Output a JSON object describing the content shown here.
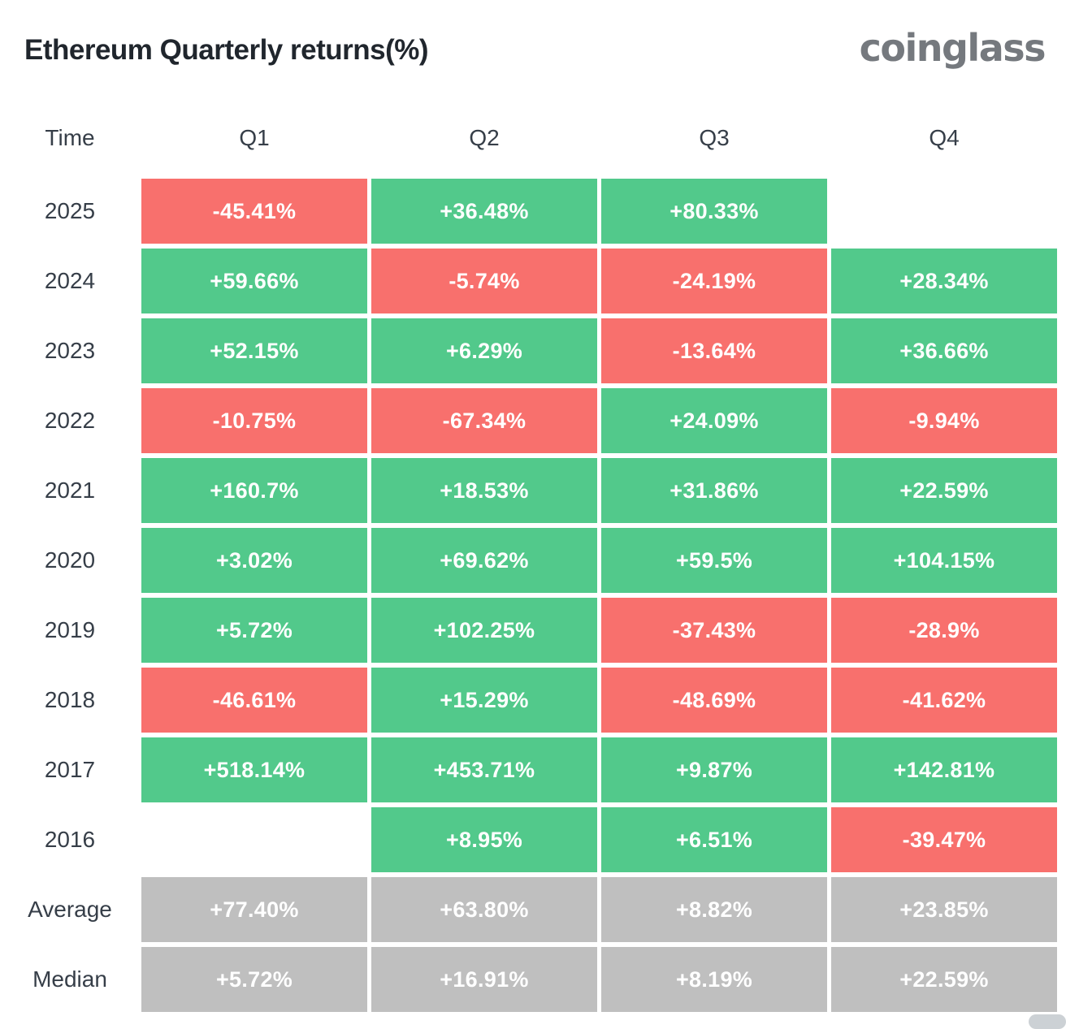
{
  "page": {
    "title": "Ethereum Quarterly returns(%)",
    "brand": "coinglass"
  },
  "colors": {
    "positive": "#52c98b",
    "negative": "#f8706d",
    "summary": "#bfbfbf",
    "label_text": "#363e48",
    "cell_text": "#ffffff"
  },
  "table": {
    "columns": [
      "Time",
      "Q1",
      "Q2",
      "Q3",
      "Q4"
    ],
    "rows": [
      {
        "label": "2025",
        "values": [
          "-45.41%",
          "+36.48%",
          "+80.33%",
          ""
        ]
      },
      {
        "label": "2024",
        "values": [
          "+59.66%",
          "-5.74%",
          "-24.19%",
          "+28.34%"
        ]
      },
      {
        "label": "2023",
        "values": [
          "+52.15%",
          "+6.29%",
          "-13.64%",
          "+36.66%"
        ]
      },
      {
        "label": "2022",
        "values": [
          "-10.75%",
          "-67.34%",
          "+24.09%",
          "-9.94%"
        ]
      },
      {
        "label": "2021",
        "values": [
          "+160.7%",
          "+18.53%",
          "+31.86%",
          "+22.59%"
        ]
      },
      {
        "label": "2020",
        "values": [
          "+3.02%",
          "+69.62%",
          "+59.5%",
          "+104.15%"
        ]
      },
      {
        "label": "2019",
        "values": [
          "+5.72%",
          "+102.25%",
          "-37.43%",
          "-28.9%"
        ]
      },
      {
        "label": "2018",
        "values": [
          "-46.61%",
          "+15.29%",
          "-48.69%",
          "-41.62%"
        ]
      },
      {
        "label": "2017",
        "values": [
          "+518.14%",
          "+453.71%",
          "+9.87%",
          "+142.81%"
        ]
      },
      {
        "label": "2016",
        "values": [
          "",
          "+8.95%",
          "+6.51%",
          "-39.47%"
        ]
      },
      {
        "label": "Average",
        "summary": true,
        "values": [
          "+77.40%",
          "+63.80%",
          "+8.82%",
          "+23.85%"
        ]
      },
      {
        "label": "Median",
        "summary": true,
        "values": [
          "+5.72%",
          "+16.91%",
          "+8.19%",
          "+22.59%"
        ]
      }
    ]
  },
  "chart_data": {
    "type": "heatmap",
    "title": "Ethereum Quarterly returns(%)",
    "columns": [
      "Q1",
      "Q2",
      "Q3",
      "Q4"
    ],
    "row_labels": [
      "2025",
      "2024",
      "2023",
      "2022",
      "2021",
      "2020",
      "2019",
      "2018",
      "2017",
      "2016",
      "Average",
      "Median"
    ],
    "values": [
      [
        -45.41,
        36.48,
        80.33,
        null
      ],
      [
        59.66,
        -5.74,
        -24.19,
        28.34
      ],
      [
        52.15,
        6.29,
        -13.64,
        36.66
      ],
      [
        -10.75,
        -67.34,
        24.09,
        -9.94
      ],
      [
        160.7,
        18.53,
        31.86,
        22.59
      ],
      [
        3.02,
        69.62,
        59.5,
        104.15
      ],
      [
        5.72,
        102.25,
        -37.43,
        -28.9
      ],
      [
        -46.61,
        15.29,
        -48.69,
        -41.62
      ],
      [
        518.14,
        453.71,
        9.87,
        142.81
      ],
      [
        null,
        8.95,
        6.51,
        -39.47
      ],
      [
        77.4,
        63.8,
        8.82,
        23.85
      ],
      [
        5.72,
        16.91,
        8.19,
        22.59
      ]
    ],
    "unit": "%",
    "color_coding": {
      "positive": "green",
      "negative": "red",
      "summary_rows": "gray",
      "missing": "white"
    }
  }
}
